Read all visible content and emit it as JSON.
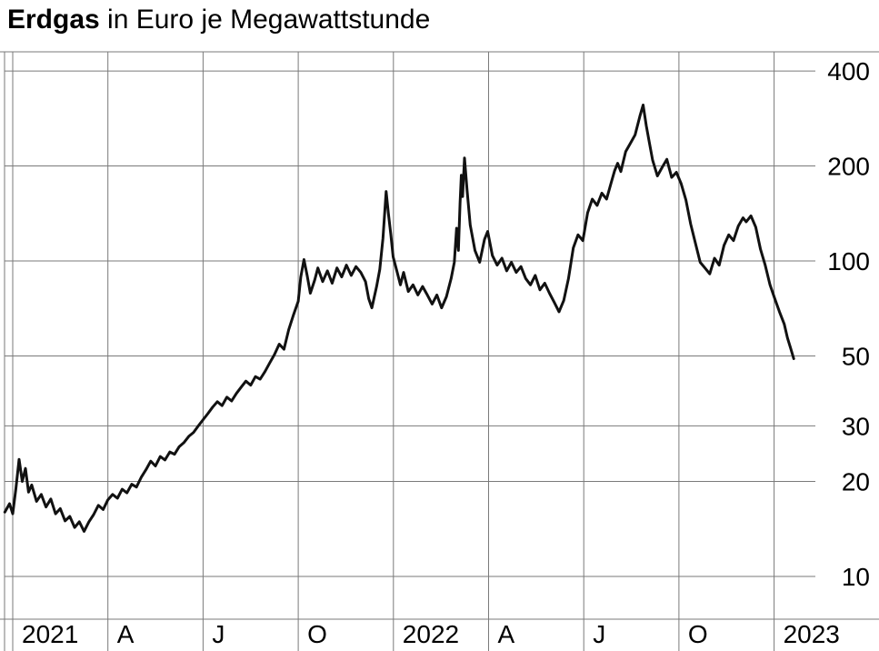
{
  "title": {
    "bold": "Erdgas",
    "rest": " in Euro je Megawattstunde"
  },
  "colors": {
    "line": "#111111",
    "grid": "#7a7a7a",
    "text": "#000000",
    "background": "#ffffff"
  },
  "chart_data": {
    "type": "line",
    "title": "Erdgas in Euro je Megawattstunde",
    "ylabel": "Euro je Megawattstunde",
    "y_scale": "log",
    "grid": true,
    "legend": "none",
    "y_ticks": [
      400,
      200,
      100,
      50,
      30,
      20,
      10
    ],
    "ylim": [
      7.5,
      450
    ],
    "x_unit": "months since January 2021",
    "x_tick_months": [
      0,
      3,
      6,
      9,
      12,
      15,
      18,
      21,
      24
    ],
    "x_tick_labels": [
      "2021",
      "A",
      "J",
      "O",
      "2022",
      "A",
      "J",
      "O",
      "2023"
    ],
    "series": [
      {
        "name": "Erdgas",
        "points": [
          [
            -0.25,
            16
          ],
          [
            -0.1,
            17
          ],
          [
            0,
            15.8
          ],
          [
            0.1,
            19
          ],
          [
            0.2,
            23.5
          ],
          [
            0.3,
            20
          ],
          [
            0.4,
            22
          ],
          [
            0.5,
            18.5
          ],
          [
            0.6,
            19.5
          ],
          [
            0.75,
            17.3
          ],
          [
            0.9,
            18.2
          ],
          [
            1.05,
            16.6
          ],
          [
            1.2,
            17.6
          ],
          [
            1.35,
            15.8
          ],
          [
            1.5,
            16.4
          ],
          [
            1.65,
            15
          ],
          [
            1.8,
            15.5
          ],
          [
            1.95,
            14.3
          ],
          [
            2.1,
            14.9
          ],
          [
            2.25,
            13.9
          ],
          [
            2.4,
            14.9
          ],
          [
            2.55,
            15.7
          ],
          [
            2.7,
            16.8
          ],
          [
            2.85,
            16.3
          ],
          [
            3.0,
            17.5
          ],
          [
            3.15,
            18.2
          ],
          [
            3.3,
            17.7
          ],
          [
            3.45,
            18.9
          ],
          [
            3.6,
            18.4
          ],
          [
            3.75,
            19.6
          ],
          [
            3.9,
            19.2
          ],
          [
            4.05,
            20.6
          ],
          [
            4.2,
            21.8
          ],
          [
            4.35,
            23.2
          ],
          [
            4.5,
            22.4
          ],
          [
            4.65,
            24
          ],
          [
            4.8,
            23.4
          ],
          [
            4.95,
            24.8
          ],
          [
            5.1,
            24.4
          ],
          [
            5.25,
            25.8
          ],
          [
            5.4,
            26.6
          ],
          [
            5.55,
            27.8
          ],
          [
            5.7,
            28.6
          ],
          [
            5.85,
            30
          ],
          [
            6.0,
            31.4
          ],
          [
            6.15,
            32.8
          ],
          [
            6.3,
            34.4
          ],
          [
            6.45,
            35.8
          ],
          [
            6.6,
            34.8
          ],
          [
            6.75,
            37
          ],
          [
            6.9,
            36
          ],
          [
            7.05,
            38
          ],
          [
            7.2,
            39.8
          ],
          [
            7.35,
            41.6
          ],
          [
            7.5,
            40.4
          ],
          [
            7.65,
            43
          ],
          [
            7.8,
            42.2
          ],
          [
            7.95,
            44.6
          ],
          [
            8.1,
            47.5
          ],
          [
            8.25,
            50.5
          ],
          [
            8.4,
            54.5
          ],
          [
            8.55,
            52.5
          ],
          [
            8.7,
            60.5
          ],
          [
            8.85,
            67.5
          ],
          [
            9.0,
            74.5
          ],
          [
            9.08,
            89
          ],
          [
            9.18,
            101
          ],
          [
            9.28,
            90
          ],
          [
            9.38,
            79
          ],
          [
            9.52,
            87
          ],
          [
            9.62,
            95
          ],
          [
            9.77,
            86
          ],
          [
            9.92,
            93
          ],
          [
            10.07,
            85
          ],
          [
            10.22,
            95
          ],
          [
            10.37,
            89
          ],
          [
            10.52,
            97
          ],
          [
            10.67,
            90
          ],
          [
            10.82,
            96
          ],
          [
            10.97,
            92
          ],
          [
            11.12,
            86
          ],
          [
            11.22,
            76
          ],
          [
            11.32,
            71
          ],
          [
            11.47,
            83
          ],
          [
            11.57,
            94
          ],
          [
            11.67,
            118
          ],
          [
            11.77,
            166
          ],
          [
            11.84,
            142
          ],
          [
            11.92,
            121
          ],
          [
            11.99,
            103
          ],
          [
            12.12,
            92
          ],
          [
            12.22,
            84
          ],
          [
            12.32,
            92
          ],
          [
            12.47,
            80
          ],
          [
            12.62,
            84
          ],
          [
            12.77,
            78
          ],
          [
            12.92,
            83
          ],
          [
            13.07,
            78
          ],
          [
            13.22,
            73
          ],
          [
            13.37,
            78
          ],
          [
            13.52,
            71
          ],
          [
            13.67,
            77
          ],
          [
            13.82,
            88
          ],
          [
            13.92,
            99
          ],
          [
            13.99,
            127
          ],
          [
            14.05,
            108
          ],
          [
            14.1,
            152
          ],
          [
            14.14,
            187
          ],
          [
            14.18,
            160
          ],
          [
            14.24,
            212
          ],
          [
            14.32,
            168
          ],
          [
            14.42,
            130
          ],
          [
            14.57,
            108
          ],
          [
            14.72,
            99
          ],
          [
            14.87,
            117
          ],
          [
            14.97,
            124
          ],
          [
            15.12,
            104
          ],
          [
            15.27,
            97
          ],
          [
            15.42,
            102
          ],
          [
            15.57,
            93
          ],
          [
            15.72,
            99
          ],
          [
            15.87,
            92
          ],
          [
            16.02,
            96
          ],
          [
            16.17,
            88
          ],
          [
            16.32,
            84
          ],
          [
            16.47,
            90
          ],
          [
            16.62,
            81
          ],
          [
            16.77,
            85
          ],
          [
            16.92,
            79
          ],
          [
            17.07,
            74
          ],
          [
            17.22,
            69
          ],
          [
            17.37,
            75
          ],
          [
            17.52,
            88
          ],
          [
            17.67,
            110
          ],
          [
            17.82,
            121
          ],
          [
            17.97,
            116
          ],
          [
            18.12,
            142
          ],
          [
            18.27,
            157
          ],
          [
            18.42,
            150
          ],
          [
            18.57,
            164
          ],
          [
            18.72,
            157
          ],
          [
            18.87,
            178
          ],
          [
            18.97,
            193
          ],
          [
            19.07,
            204
          ],
          [
            19.17,
            192
          ],
          [
            19.32,
            222
          ],
          [
            19.47,
            236
          ],
          [
            19.62,
            251
          ],
          [
            19.77,
            288
          ],
          [
            19.87,
            312
          ],
          [
            19.97,
            268
          ],
          [
            20.07,
            237
          ],
          [
            20.17,
            209
          ],
          [
            20.32,
            186
          ],
          [
            20.47,
            198
          ],
          [
            20.62,
            210
          ],
          [
            20.77,
            184
          ],
          [
            20.92,
            191
          ],
          [
            21.07,
            176
          ],
          [
            21.22,
            156
          ],
          [
            21.37,
            131
          ],
          [
            21.52,
            114
          ],
          [
            21.67,
            99
          ],
          [
            21.82,
            95
          ],
          [
            21.97,
            91
          ],
          [
            22.12,
            102
          ],
          [
            22.27,
            97
          ],
          [
            22.42,
            112
          ],
          [
            22.57,
            121
          ],
          [
            22.72,
            116
          ],
          [
            22.87,
            129
          ],
          [
            23.02,
            137
          ],
          [
            23.12,
            133
          ],
          [
            23.27,
            139
          ],
          [
            23.42,
            128
          ],
          [
            23.57,
            109
          ],
          [
            23.72,
            97
          ],
          [
            23.87,
            84
          ],
          [
            24.02,
            76
          ],
          [
            24.17,
            69
          ],
          [
            24.32,
            63
          ],
          [
            24.42,
            57
          ],
          [
            24.52,
            53
          ],
          [
            24.62,
            49
          ]
        ]
      }
    ]
  }
}
